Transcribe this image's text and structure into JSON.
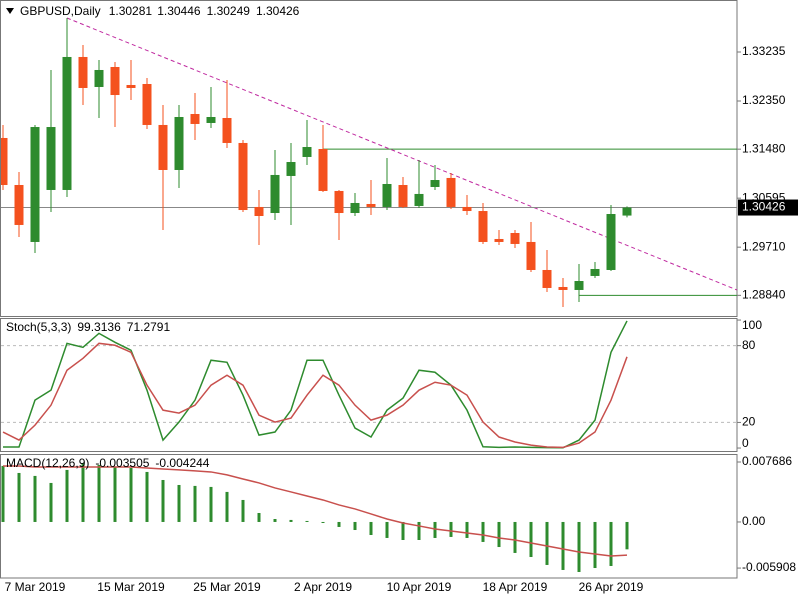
{
  "chart_data": [
    {
      "type": "candlestick",
      "title": "GBPUSD,Daily",
      "categories": [
        null,
        null,
        "7 Mar 2019",
        null,
        null,
        null,
        null,
        null,
        "15 Mar 2019",
        null,
        null,
        null,
        null,
        null,
        "25 Mar 2019",
        null,
        null,
        null,
        null,
        null,
        "2 Apr 2019",
        null,
        null,
        null,
        null,
        null,
        "10 Apr 2019",
        null,
        null,
        null,
        null,
        null,
        "18 Apr 2019",
        null,
        null,
        null,
        null,
        null,
        "26 Apr 2019",
        null
      ],
      "open": [
        1.31682,
        1.30833,
        1.29804,
        1.30743,
        1.30743,
        1.33145,
        1.32603,
        1.32964,
        1.32639,
        1.32657,
        1.31917,
        1.31104,
        1.32115,
        1.31953,
        1.32043,
        1.31592,
        1.30436,
        1.30327,
        1.30996,
        1.31339,
        1.31483,
        1.30725,
        1.30327,
        1.3049,
        1.30436,
        1.30833,
        1.30454,
        1.30797,
        1.3096,
        1.30436,
        1.30363,
        1.29858,
        1.29966,
        1.29804,
        1.29298,
        1.28991,
        1.28937,
        1.2919,
        1.29298,
        1.30281
      ],
      "high": [
        1.31917,
        1.31068,
        1.31917,
        1.3291,
        1.33849,
        1.33361,
        1.3309,
        1.33054,
        1.3309,
        1.32765,
        1.32278,
        1.32278,
        1.32494,
        1.32603,
        1.32729,
        1.31646,
        1.30743,
        1.31465,
        1.31592,
        1.32007,
        1.31917,
        1.30743,
        1.30689,
        1.30923,
        1.31321,
        1.30978,
        1.31285,
        1.31194,
        1.3105,
        1.30653,
        1.30508,
        1.3002,
        1.3002,
        1.30165,
        1.29659,
        1.29154,
        1.29406,
        1.29442,
        1.30472,
        1.30446
      ],
      "low": [
        1.30743,
        1.29894,
        1.29605,
        1.30345,
        1.30616,
        1.32278,
        1.32043,
        1.3188,
        1.32368,
        1.31844,
        1.3002,
        1.30779,
        1.31646,
        1.31862,
        1.31501,
        1.30345,
        1.2975,
        1.30201,
        1.30111,
        1.31194,
        1.30707,
        1.2984,
        1.30273,
        1.30291,
        1.30381,
        1.30418,
        1.30418,
        1.30743,
        1.304,
        1.30291,
        1.29768,
        1.2975,
        1.29695,
        1.29262,
        1.28901,
        1.2863,
        1.2872,
        1.29154,
        1.2928,
        1.30249
      ],
      "close": [
        1.30833,
        1.30111,
        1.3188,
        1.3188,
        1.33145,
        1.32585,
        1.3291,
        1.32458,
        1.32585,
        1.31917,
        1.31104,
        1.32061,
        1.31935,
        1.32061,
        1.31592,
        1.30381,
        1.30273,
        1.31014,
        1.31248,
        1.31519,
        1.30725,
        1.30327,
        1.30508,
        1.30436,
        1.30851,
        1.30436,
        1.30671,
        1.30923,
        1.30436,
        1.30363,
        1.29804,
        1.29804,
        1.29768,
        1.29298,
        1.28973,
        1.28937,
        1.29099,
        1.29316,
        1.30309,
        1.30426
      ],
      "up_color": "#2e8b2e",
      "down_color": "#f4511e",
      "ylim": [
        1.28467,
        1.34174
      ],
      "yticks": [
        1.33235,
        {
          "value": 1.3235,
          "label": "1.32350"
        },
        {
          "value": 1.3148,
          "label": "1.31480"
        },
        1.30595,
        {
          "value": 1.2971,
          "label": "1.29710"
        },
        {
          "value": 1.2884,
          "label": "1.28840"
        }
      ],
      "hlines": [
        {
          "value": 1.3148,
          "from": 20
        },
        {
          "value": 1.2884,
          "from": 36
        }
      ],
      "hline_color": "#2e8b2e",
      "trendline": {
        "x": [
          4,
          45.875
        ],
        "y": [
          1.33849,
          1.28937
        ],
        "color": "#c02aa0"
      },
      "last_price_line": true
    },
    {
      "type": "line",
      "title": "Stoch(5,3,3)",
      "series": [
        {
          "color": "#2e8b2e",
          "values": [
            0.8,
            0.8,
            37.4,
            45.2,
            81.8,
            78.7,
            89.6,
            82.6,
            76.4,
            45.2,
            6.2,
            20.3,
            37.4,
            68.6,
            67.0,
            41.3,
            10.1,
            12.5,
            29.6,
            68.6,
            68.6,
            41.3,
            15.6,
            8.6,
            29.6,
            39.0,
            60.8,
            59.2,
            49.1,
            29.6,
            1.0,
            0.5,
            0.8,
            0.5,
            0.3,
            0.2,
            6.2,
            21.8,
            74.8,
            99.3136
          ]
        },
        {
          "color": "#c8504d",
          "values": [
            12.5,
            6.2,
            17.9,
            33.5,
            60.8,
            70.1,
            81.8,
            80.3,
            74.8,
            49.1,
            29.6,
            27.3,
            33.5,
            49.1,
            56.9,
            49.1,
            25.7,
            20.3,
            23.4,
            41.3,
            56.9,
            49.1,
            33.5,
            21.8,
            25.7,
            33.5,
            45.2,
            51.4,
            49.1,
            41.3,
            20.3,
            8.6,
            4.7,
            2.3,
            0.8,
            0.5,
            3.9,
            12.5,
            37.4,
            71.2791
          ]
        }
      ],
      "ylim": [
        -3.1,
        101.6
      ],
      "yticks": [
        100,
        80,
        20,
        0
      ]
    },
    {
      "type": "macd",
      "title": "MACD(12,26,9)",
      "series": [
        {
          "type": "bar",
          "color": "#2e8b2e",
          "values": [
            0.00718,
            0.00628,
            0.0059,
            0.005,
            0.00667,
            0.00756,
            0.00731,
            0.00705,
            0.00692,
            0.00641,
            0.00538,
            0.00474,
            0.00462,
            0.00449,
            0.00385,
            0.00282,
            0.00115,
            0.00038,
            0.00026,
            0.00013,
            -0.00013,
            -0.00064,
            -0.00103,
            -0.00167,
            -0.00205,
            -0.00231,
            -0.00231,
            -0.00205,
            -0.00192,
            -0.00205,
            -0.00256,
            -0.00321,
            -0.00397,
            -0.00449,
            -0.00551,
            -0.00615,
            -0.00641,
            -0.0059,
            -0.00564,
            -0.003505
          ]
        },
        {
          "type": "line",
          "color": "#c8504d",
          "values": [
            0.00718,
            0.00718,
            0.00705,
            0.00705,
            0.00705,
            0.00705,
            0.00705,
            0.00705,
            0.00705,
            0.00692,
            0.00679,
            0.00667,
            0.00654,
            0.00641,
            0.00603,
            0.00551,
            0.005,
            0.00436,
            0.00385,
            0.00333,
            0.00282,
            0.00218,
            0.00167,
            0.00103,
            0.00038,
            -0.00013,
            -0.00051,
            -0.0009,
            -0.00115,
            -0.00141,
            -0.00167,
            -0.00205,
            -0.00231,
            -0.00269,
            -0.00308,
            -0.00346,
            -0.00385,
            -0.0041,
            -0.00436,
            -0.004244
          ]
        }
      ],
      "ylim": [
        -0.00718,
        0.00871
      ],
      "yticks": [
        0.007686,
        {
          "value": 0,
          "label": "0.00"
        },
        -0.005908
      ]
    }
  ]
}
